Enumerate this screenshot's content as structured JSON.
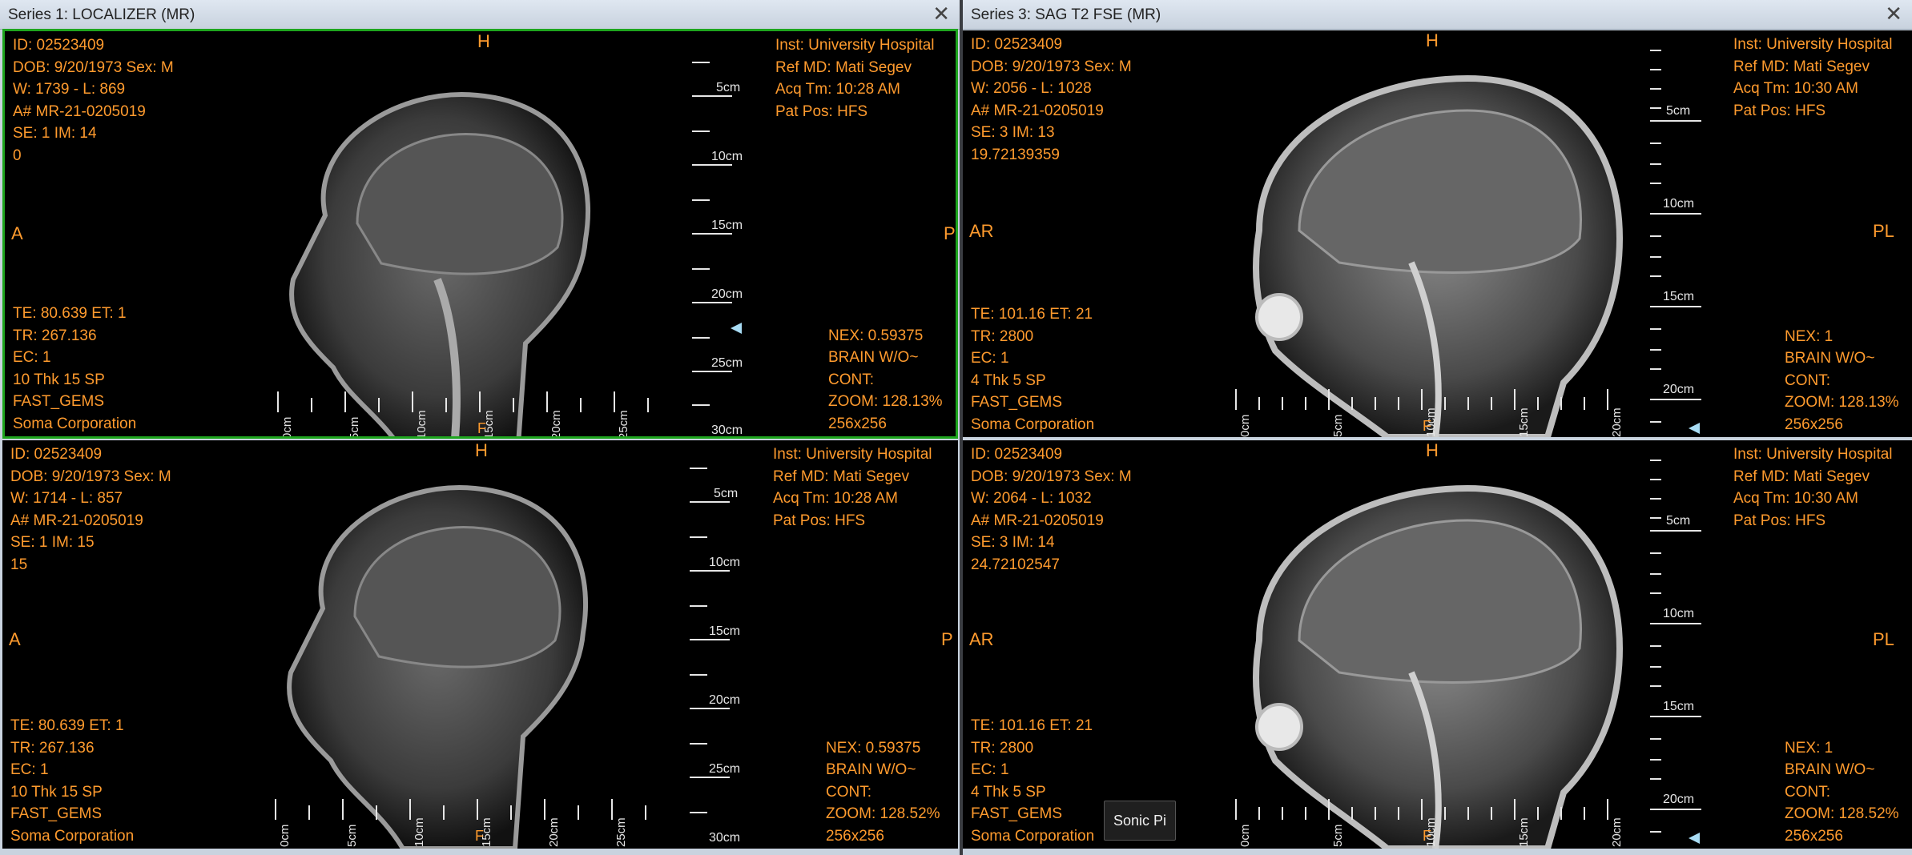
{
  "series1": {
    "title": "Series 1: LOCALIZER (MR)",
    "close": "✕"
  },
  "series2": {
    "title": "Series 3: SAG T2 FSE (MR)",
    "close": "✕"
  },
  "viewports": [
    {
      "tl": [
        "ID: 02523409",
        "DOB: 9/20/1973 Sex: M",
        "W: 1739 - L: 869",
        "A# MR-21-0205019",
        "SE: 1 IM: 14",
        "0"
      ],
      "tr": [
        "Inst: University Hospital",
        "Ref MD: Mati Segev",
        "Acq Tm: 10:28 AM",
        "Pat Pos: HFS"
      ],
      "bl": [
        "TE: 80.639 ET: 1",
        "TR: 267.136",
        "EC: 1",
        "10 Thk 15 SP",
        "FAST_GEMS",
        "Soma Corporation"
      ],
      "br": [
        "NEX: 0.59375",
        "BRAIN W/O~",
        "CONT:",
        "ZOOM: 128.13%",
        "256x256"
      ],
      "orient": {
        "top": "H",
        "left": "A",
        "right": "P"
      },
      "ruler_v": [
        "5cm",
        "10cm",
        "15cm",
        "20cm",
        "25cm",
        "30cm"
      ],
      "ruler_h": [
        "0cm",
        "5cm",
        "10cm",
        "15cm",
        "20cm",
        "25cm"
      ],
      "hmark": "F"
    },
    {
      "tl": [
        "ID: 02523409",
        "DOB: 9/20/1973 Sex: M",
        "W: 1714 - L: 857",
        "A# MR-21-0205019",
        "SE: 1 IM: 15",
        "15"
      ],
      "tr": [
        "Inst: University Hospital",
        "Ref MD: Mati Segev",
        "Acq Tm: 10:28 AM",
        "Pat Pos: HFS"
      ],
      "bl": [
        "TE: 80.639 ET: 1",
        "TR: 267.136",
        "EC: 1",
        "10 Thk 15 SP",
        "FAST_GEMS",
        "Soma Corporation"
      ],
      "br": [
        "NEX: 0.59375",
        "BRAIN W/O~",
        "CONT:",
        "ZOOM: 128.52%",
        "256x256"
      ],
      "orient": {
        "top": "H",
        "left": "A",
        "right": "P"
      },
      "ruler_v": [
        "5cm",
        "10cm",
        "15cm",
        "20cm",
        "25cm",
        "30cm"
      ],
      "ruler_h": [
        "0cm",
        "5cm",
        "10cm",
        "15cm",
        "20cm",
        "25cm"
      ],
      "hmark": "F"
    },
    {
      "tl": [
        "ID: 02523409",
        "DOB: 9/20/1973 Sex: M",
        "W: 2056 - L: 1028",
        "A# MR-21-0205019",
        "SE: 3 IM: 13",
        "19.72139359"
      ],
      "tr": [
        "Inst: University Hospital",
        "Ref MD: Mati Segev",
        "Acq Tm: 10:30 AM",
        "Pat Pos: HFS"
      ],
      "bl": [
        "TE: 101.16 ET: 21",
        "TR: 2800",
        "EC: 1",
        "4 Thk 5 SP",
        "FAST_GEMS",
        "Soma Corporation"
      ],
      "br": [
        "NEX: 1",
        "BRAIN W/O~",
        "CONT:",
        "ZOOM: 128.13%",
        "256x256"
      ],
      "orient": {
        "top": "H",
        "left": "AR",
        "right": "PL"
      },
      "ruler_v": [
        "5cm",
        "10cm",
        "15cm",
        "20cm"
      ],
      "ruler_h": [
        "0cm",
        "5cm",
        "10cm",
        "15cm",
        "20cm"
      ],
      "hmark": "F"
    },
    {
      "tl": [
        "ID: 02523409",
        "DOB: 9/20/1973 Sex: M",
        "W: 2064 - L: 1032",
        "A# MR-21-0205019",
        "SE: 3 IM: 14",
        "24.72102547"
      ],
      "tr": [
        "Inst: University Hospital",
        "Ref MD: Mati Segev",
        "Acq Tm: 10:30 AM",
        "Pat Pos: HFS"
      ],
      "bl": [
        "TE: 101.16 ET: 21",
        "TR: 2800",
        "EC: 1",
        "4 Thk 5 SP",
        "FAST_GEMS",
        "Soma Corporation"
      ],
      "br": [
        "NEX: 1",
        "BRAIN W/O~",
        "CONT:",
        "ZOOM: 128.52%",
        "256x256"
      ],
      "orient": {
        "top": "H",
        "left": "AR",
        "right": "PL"
      },
      "ruler_v": [
        "5cm",
        "10cm",
        "15cm",
        "20cm"
      ],
      "ruler_h": [
        "0cm",
        "5cm",
        "10cm",
        "15cm",
        "20cm"
      ],
      "hmark": "F"
    }
  ],
  "tooltip": "Sonic Pi",
  "colors": {
    "overlay": "#ff9b2e",
    "active_border": "#1ea51e",
    "ruler": "#e6e6e6"
  }
}
